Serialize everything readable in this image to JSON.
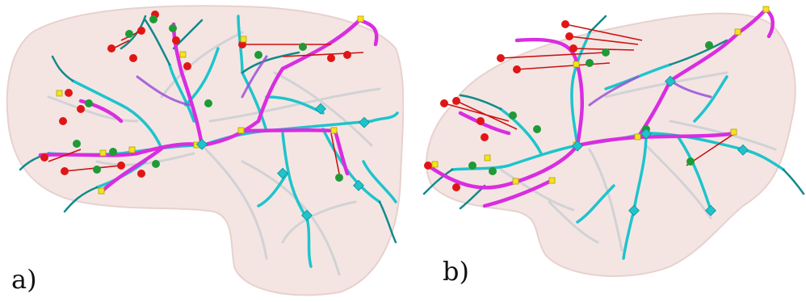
{
  "figure": {
    "panels": [
      {
        "id": "a",
        "label": "a)"
      },
      {
        "id": "b",
        "label": "b)"
      }
    ]
  },
  "colors": {
    "organ": "#f4e4e2",
    "organ_edge": "#e6cfcc",
    "shadow_vessels": "#a8bcc6",
    "vessel_cyan": "#1ec4cc",
    "vessel_teal": "#118a8a",
    "vessel_magenta": "#d92de0",
    "vessel_purple": "#9a52d8",
    "marker_red": "#e01616",
    "marker_green": "#1f9a36",
    "marker_yellow": "#f4e41c",
    "link_line": "#cc1111"
  }
}
